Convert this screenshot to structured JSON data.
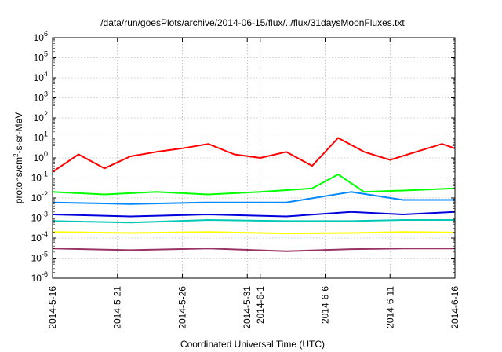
{
  "chart_data": {
    "type": "line",
    "title": "/data/run/goesPlots/archive/2014-06-15/flux/../flux/31daysMoonFluxes.txt",
    "xlabel": "Coordinated Universal Time (UTC)",
    "ylabel": {
      "prefix": "protons/cm",
      "sup": "2",
      "suffix": "-s-sr-MeV"
    },
    "y_scale": "log",
    "ylim_exponent": [
      -6,
      6
    ],
    "y_tick_exponents": [
      -6,
      -5,
      -4,
      -3,
      -2,
      -1,
      0,
      1,
      2,
      3,
      4,
      5,
      6
    ],
    "y_tick_base": "10",
    "xlim": [
      "2014-05-16",
      "2014-06-16"
    ],
    "x_ticks": [
      {
        "date": "2014-05-16",
        "label": "2014-5-16"
      },
      {
        "date": "2014-05-21",
        "label": "2014-5-21"
      },
      {
        "date": "2014-05-26",
        "label": "2014-5-26"
      },
      {
        "date": "2014-05-31",
        "label": "2014-5-31"
      },
      {
        "date": "2014-06-01",
        "label": "2014-6-1"
      },
      {
        "date": "2014-06-06",
        "label": "2014-6-6"
      },
      {
        "date": "2014-06-11",
        "label": "2014-6-11"
      },
      {
        "date": "2014-06-16",
        "label": "2014-6-16"
      }
    ],
    "grid": true,
    "series": [
      {
        "color": "#ff0000",
        "x": [
          "2014-05-16",
          "2014-05-18",
          "2014-05-20",
          "2014-05-22",
          "2014-05-24",
          "2014-05-26",
          "2014-05-28",
          "2014-05-30",
          "2014-06-01",
          "2014-06-03",
          "2014-06-05",
          "2014-06-07",
          "2014-06-09",
          "2014-06-11",
          "2014-06-13",
          "2014-06-15",
          "2014-06-16"
        ],
        "y": [
          0.2,
          1.5,
          0.3,
          1.2,
          2.0,
          3.0,
          5.0,
          1.5,
          1.0,
          2.0,
          0.4,
          10,
          2.0,
          0.8,
          2.0,
          5.0,
          3.0
        ]
      },
      {
        "color": "#00ff00",
        "x": [
          "2014-05-16",
          "2014-05-20",
          "2014-05-24",
          "2014-05-28",
          "2014-06-01",
          "2014-06-05",
          "2014-06-07",
          "2014-06-09",
          "2014-06-13",
          "2014-06-16"
        ],
        "y": [
          0.02,
          0.015,
          0.02,
          0.015,
          0.02,
          0.03,
          0.15,
          0.02,
          0.025,
          0.03
        ]
      },
      {
        "color": "#0088ff",
        "x": [
          "2014-05-16",
          "2014-05-22",
          "2014-05-28",
          "2014-06-03",
          "2014-06-08",
          "2014-06-12",
          "2014-06-16"
        ],
        "y": [
          0.006,
          0.005,
          0.006,
          0.006,
          0.02,
          0.008,
          0.008
        ]
      },
      {
        "color": "#0000dd",
        "x": [
          "2014-05-16",
          "2014-05-22",
          "2014-05-28",
          "2014-06-03",
          "2014-06-08",
          "2014-06-12",
          "2014-06-16"
        ],
        "y": [
          0.0015,
          0.0012,
          0.0015,
          0.0012,
          0.002,
          0.0015,
          0.002
        ]
      },
      {
        "color": "#00c8b4",
        "x": [
          "2014-05-16",
          "2014-05-22",
          "2014-05-28",
          "2014-06-03",
          "2014-06-08",
          "2014-06-12",
          "2014-06-16"
        ],
        "y": [
          0.0007,
          0.0006,
          0.0008,
          0.0007,
          0.0007,
          0.0008,
          0.0008
        ]
      },
      {
        "color": "#ffff00",
        "x": [
          "2014-05-16",
          "2014-05-22",
          "2014-05-28",
          "2014-06-03",
          "2014-06-08",
          "2014-06-12",
          "2014-06-16"
        ],
        "y": [
          0.0002,
          0.00018,
          0.0002,
          0.00017,
          0.00018,
          0.0002,
          0.00019
        ]
      },
      {
        "color": "#993366",
        "x": [
          "2014-05-16",
          "2014-05-22",
          "2014-05-28",
          "2014-06-03",
          "2014-06-08",
          "2014-06-12",
          "2014-06-16"
        ],
        "y": [
          3e-05,
          2.5e-05,
          3e-05,
          2.2e-05,
          2.8e-05,
          3e-05,
          3e-05
        ]
      }
    ]
  }
}
